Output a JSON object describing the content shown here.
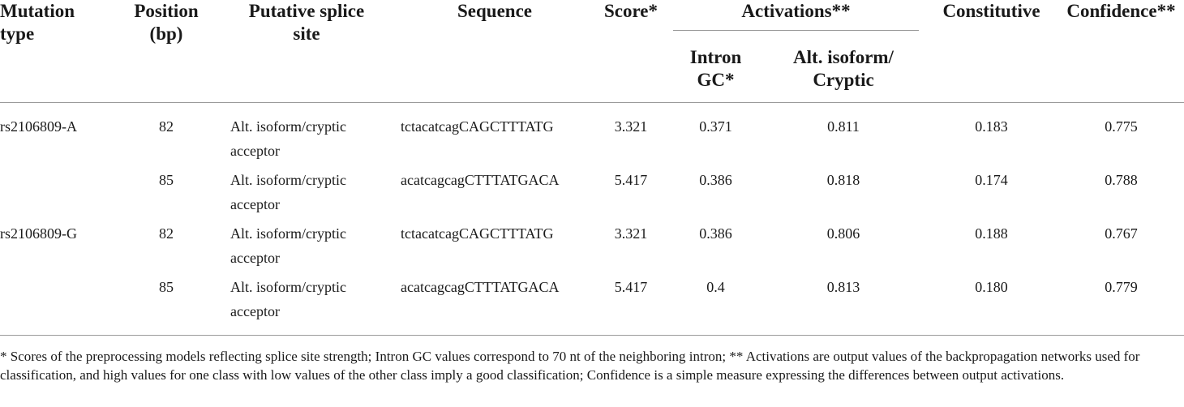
{
  "headers": {
    "mutation_type": [
      "Mutation",
      "type"
    ],
    "position": [
      "Position",
      "(bp)"
    ],
    "putative_splice_site": [
      "Putative splice",
      "site"
    ],
    "sequence": "Sequence",
    "score": "Score*",
    "activations": "Activations**",
    "intron_gc": [
      "Intron",
      "GC*"
    ],
    "alt_isoform": [
      "Alt. isoform/",
      "Cryptic"
    ],
    "constitutive": "Constitutive",
    "confidence": "Confidence**"
  },
  "rows": [
    {
      "mutation": "rs2106809-A",
      "position": "82",
      "site": [
        "Alt. isoform/cryptic",
        "acceptor"
      ],
      "sequence": "tctacatcagCAGCTTTATG",
      "score": "3.321",
      "intron_gc": "0.371",
      "alt": "0.811",
      "constitutive": "0.183",
      "confidence": "0.775"
    },
    {
      "mutation": "",
      "position": "85",
      "site": [
        "Alt. isoform/cryptic",
        "acceptor"
      ],
      "sequence": "acatcagcagCTTTATGACA",
      "score": "5.417",
      "intron_gc": "0.386",
      "alt": "0.818",
      "constitutive": "0.174",
      "confidence": "0.788"
    },
    {
      "mutation": "rs2106809-G",
      "position": "82",
      "site": [
        "Alt. isoform/cryptic",
        "acceptor"
      ],
      "sequence": "tctacatcagCAGCTTTATG",
      "score": "3.321",
      "intron_gc": "0.386",
      "alt": "0.806",
      "constitutive": "0.188",
      "confidence": "0.767"
    },
    {
      "mutation": "",
      "position": "85",
      "site": [
        "Alt. isoform/cryptic",
        "acceptor"
      ],
      "sequence": "acatcagcagCTTTATGACA",
      "score": "5.417",
      "intron_gc": "0.4",
      "alt": "0.813",
      "constitutive": "0.180",
      "confidence": "0.779"
    }
  ],
  "footnote": "* Scores of the preprocessing models reflecting splice site strength; Intron GC values correspond to 70 nt of the neighboring intron; ** Activations are output values of the backpropagation networks used for classification, and high values for one class with low values of the other class imply a good classification; Confidence is a simple measure expressing the differences between output activations."
}
